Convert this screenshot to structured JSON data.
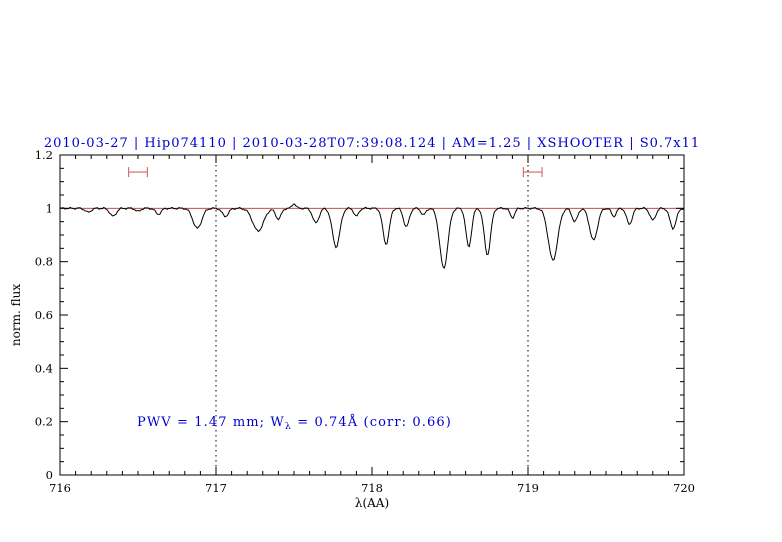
{
  "title": "2010-03-27 | Hip074110 | 2010-03-28T07:39:08.124 | AM=1.25 | XSHOOTER | S0.7x11",
  "colors": {
    "title": "#0000cc",
    "annotation": "#0000cc",
    "spectrum": "#000000",
    "baseline": "#bb3333",
    "markers": "#cc6666",
    "dotted": "#000000",
    "frame": "#000000"
  },
  "annotation": {
    "part1": "PWV = 1.47 mm; W",
    "sub": "λ",
    "part2": " = 0.74Å (corr: 0.66)"
  },
  "chart_data": {
    "type": "line",
    "title": "2010-03-27 | Hip074110 | 2010-03-28T07:39:08.124 | AM=1.25 | XSHOOTER | S0.7x11",
    "xlabel": "λ(AA)",
    "ylabel": "norm. flux",
    "xlim": [
      716,
      720
    ],
    "ylim": [
      0,
      1.2
    ],
    "x_ticks": [
      {
        "v": 716,
        "label": "716"
      },
      {
        "v": 717,
        "label": "717"
      },
      {
        "v": 718,
        "label": "718"
      },
      {
        "v": 719,
        "label": "719"
      },
      {
        "v": 720,
        "label": "720"
      }
    ],
    "y_ticks": [
      {
        "v": 0,
        "label": "0"
      },
      {
        "v": 0.2,
        "label": "0.2"
      },
      {
        "v": 0.4,
        "label": "0.4"
      },
      {
        "v": 0.6,
        "label": "0.6"
      },
      {
        "v": 0.8,
        "label": "0.8"
      },
      {
        "v": 1,
        "label": "1"
      },
      {
        "v": 1.2,
        "label": "1.2"
      }
    ],
    "x_minor_step": 0.1,
    "y_minor_step": 0.05,
    "grid": false,
    "baseline": 1.0,
    "reference_line_y": 1.0,
    "vertical_dotted_lines": [
      717,
      719
    ],
    "band_markers": [
      {
        "x1": 716.44,
        "x2": 716.56,
        "y": 1.136
      },
      {
        "x1": 718.97,
        "x2": 719.09,
        "y": 1.136
      }
    ],
    "sample_step": 0.008,
    "noise_amplitude": 0.004,
    "absorption_lines": [
      {
        "c": 716.18,
        "d": 0.015,
        "w": 0.018
      },
      {
        "c": 716.34,
        "d": 0.03,
        "w": 0.02
      },
      {
        "c": 716.5,
        "d": 0.012,
        "w": 0.015
      },
      {
        "c": 716.63,
        "d": 0.022,
        "w": 0.018
      },
      {
        "c": 716.88,
        "d": 0.075,
        "w": 0.028
      },
      {
        "c": 717.06,
        "d": 0.03,
        "w": 0.02
      },
      {
        "c": 717.27,
        "d": 0.085,
        "w": 0.035
      },
      {
        "c": 717.4,
        "d": 0.04,
        "w": 0.018
      },
      {
        "c": 717.5,
        "d": -0.018,
        "w": 0.012
      },
      {
        "c": 717.64,
        "d": 0.055,
        "w": 0.02
      },
      {
        "c": 717.77,
        "d": 0.145,
        "w": 0.024
      },
      {
        "c": 717.9,
        "d": 0.03,
        "w": 0.015
      },
      {
        "c": 718.09,
        "d": 0.135,
        "w": 0.02
      },
      {
        "c": 718.22,
        "d": 0.07,
        "w": 0.018
      },
      {
        "c": 718.33,
        "d": 0.025,
        "w": 0.015
      },
      {
        "c": 718.46,
        "d": 0.225,
        "w": 0.026
      },
      {
        "c": 718.62,
        "d": 0.145,
        "w": 0.018
      },
      {
        "c": 718.74,
        "d": 0.175,
        "w": 0.02
      },
      {
        "c": 718.9,
        "d": 0.035,
        "w": 0.015
      },
      {
        "c": 719.16,
        "d": 0.195,
        "w": 0.03
      },
      {
        "c": 719.3,
        "d": 0.05,
        "w": 0.018
      },
      {
        "c": 719.42,
        "d": 0.12,
        "w": 0.025
      },
      {
        "c": 719.55,
        "d": 0.03,
        "w": 0.015
      },
      {
        "c": 719.65,
        "d": 0.06,
        "w": 0.018
      },
      {
        "c": 719.8,
        "d": 0.045,
        "w": 0.018
      },
      {
        "c": 719.93,
        "d": 0.075,
        "w": 0.02
      }
    ]
  }
}
